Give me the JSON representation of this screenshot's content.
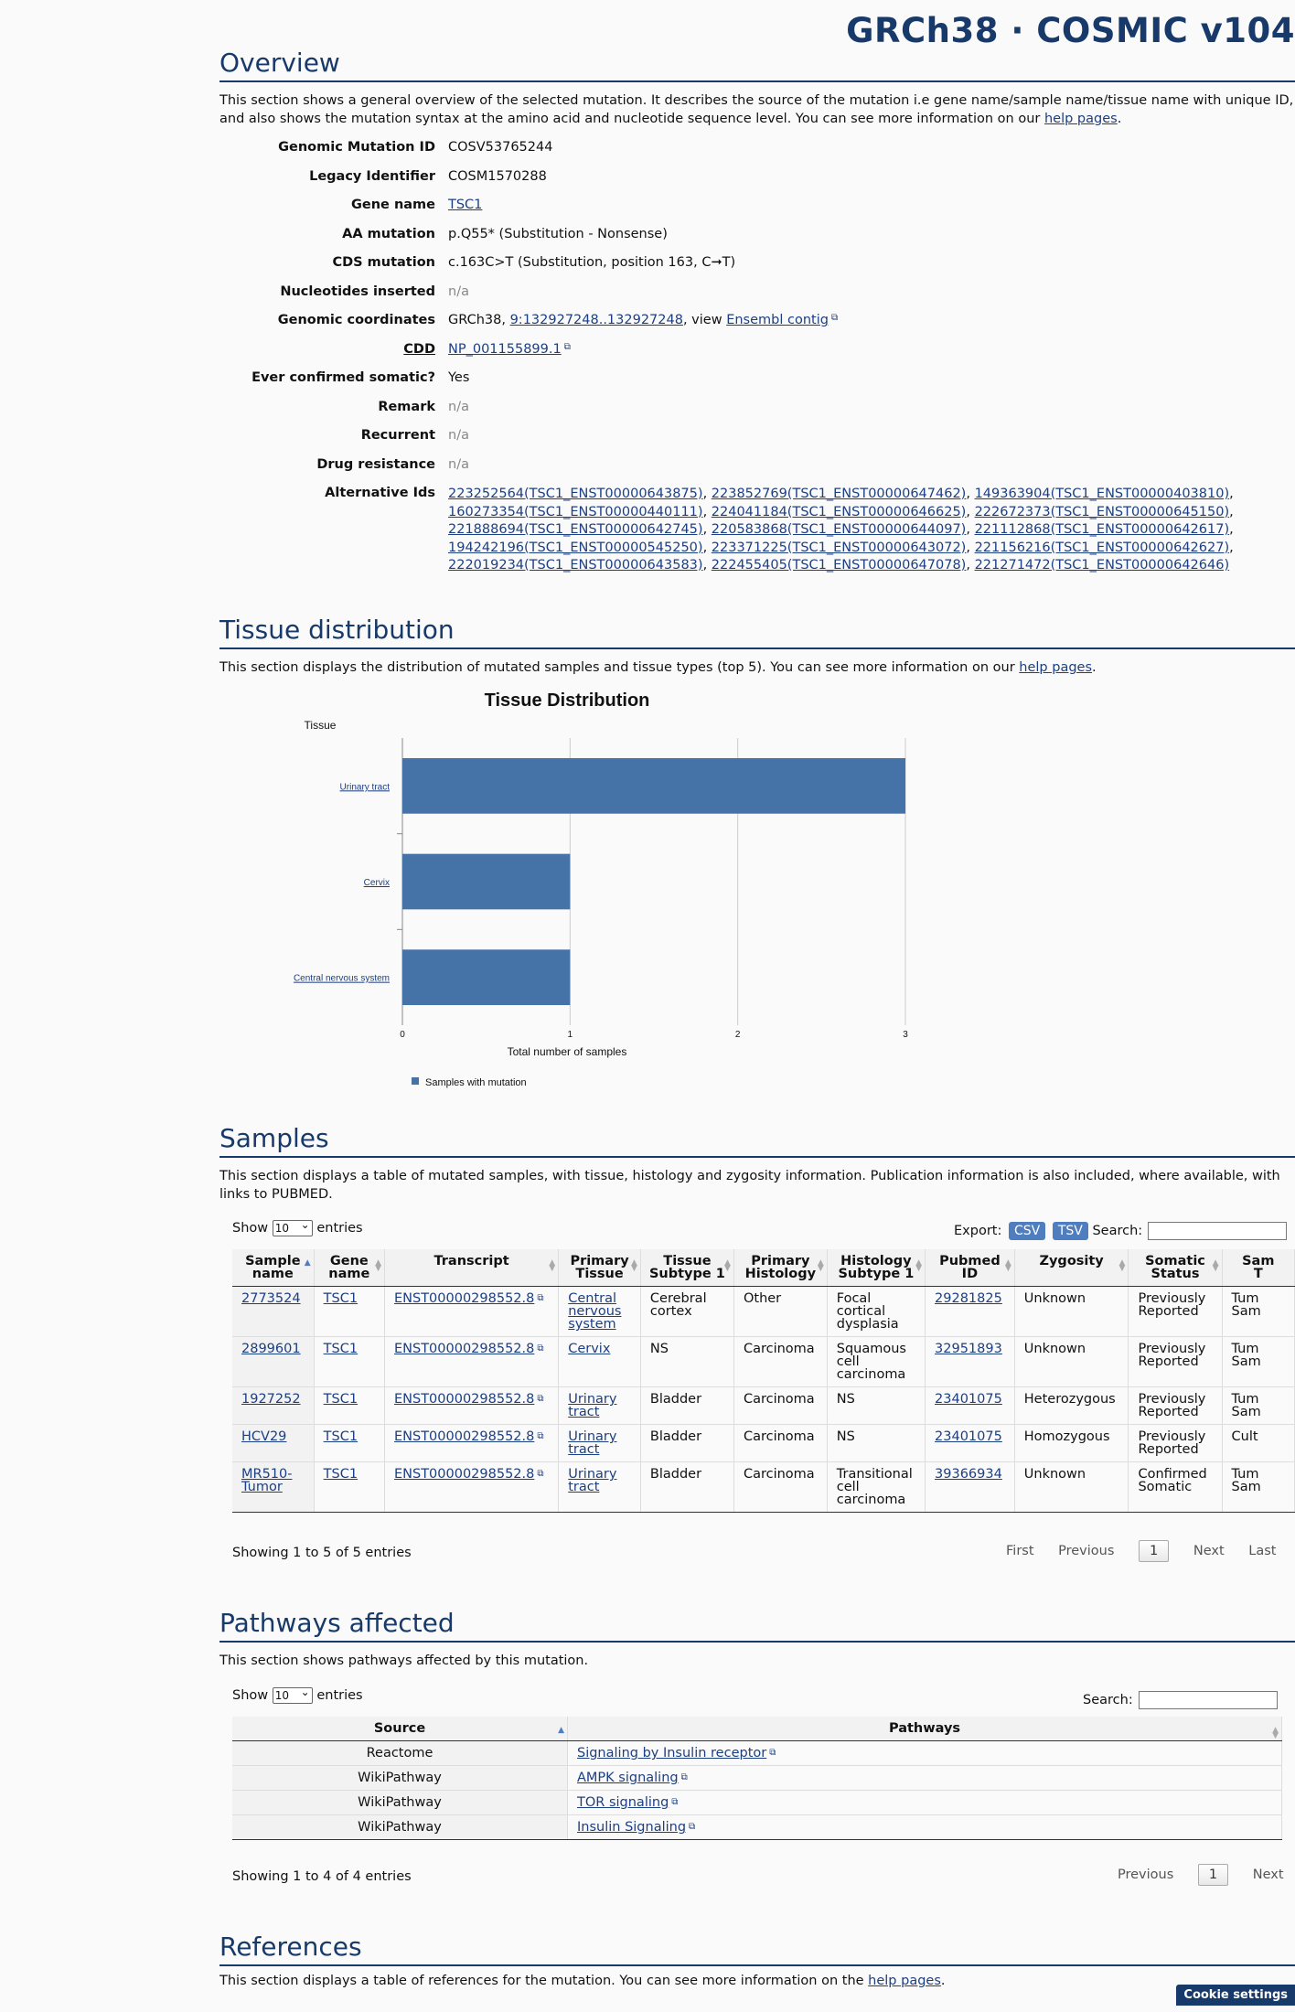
{
  "header": {
    "brand": "GRCh38 · COSMIC v104"
  },
  "overview": {
    "title": "Overview",
    "intro_text": "This section shows a general overview of the selected mutation. It describes the source of the mutation i.e gene name/sample name/tissue name with unique ID, and also shows the mutation syntax at the amino acid and nucleotide sequence level. You can see more information on our ",
    "intro_link": "help pages",
    "intro_end": ".",
    "rows": {
      "genomic_mutation_id": {
        "label": "Genomic Mutation ID",
        "value": "COSV53765244"
      },
      "legacy_identifier": {
        "label": "Legacy Identifier",
        "value": "COSM1570288"
      },
      "gene_name": {
        "label": "Gene name",
        "value": "TSC1"
      },
      "aa_mutation": {
        "label": "AA mutation",
        "value": "p.Q55* (Substitution - Nonsense)"
      },
      "cds_mutation": {
        "label": "CDS mutation",
        "value": "c.163C>T (Substitution, position 163, C➞T)"
      },
      "nucleotides_inserted": {
        "label": "Nucleotides inserted",
        "value": "n/a"
      },
      "genomic_coordinates": {
        "label": "Genomic coordinates",
        "prefix": "GRCh38, ",
        "coord": "9:132927248..132927248",
        "mid": ", view ",
        "link": "Ensembl contig"
      },
      "cdd": {
        "label": "CDD",
        "value": "NP_001155899.1"
      },
      "ever_confirmed_somatic": {
        "label": "Ever confirmed somatic?",
        "value": "Yes"
      },
      "remark": {
        "label": "Remark",
        "value": "n/a"
      },
      "recurrent": {
        "label": "Recurrent",
        "value": "n/a"
      },
      "drug_resistance": {
        "label": "Drug resistance",
        "value": "n/a"
      },
      "alternative_ids": {
        "label": "Alternative Ids",
        "ids": [
          "223252564(TSC1_ENST00000643875)",
          "223852769(TSC1_ENST00000647462)",
          "149363904(TSC1_ENST00000403810)",
          "160273354(TSC1_ENST00000440111)",
          "224041184(TSC1_ENST00000646625)",
          "222672373(TSC1_ENST00000645150)",
          "221888694(TSC1_ENST00000642745)",
          "220583868(TSC1_ENST00000644097)",
          "221112868(TSC1_ENST00000642617)",
          "194242196(TSC1_ENST00000545250)",
          "223371225(TSC1_ENST00000643072)",
          "221156216(TSC1_ENST00000642627)",
          "222019234(TSC1_ENST00000643583)",
          "222455405(TSC1_ENST00000647078)",
          "221271472(TSC1_ENST00000642646)"
        ]
      }
    }
  },
  "tissue": {
    "title": "Tissue distribution",
    "intro_text": "This section displays the distribution of mutated samples and tissue types (top 5). You can see more information on our ",
    "intro_link": "help pages",
    "intro_end": "."
  },
  "chart_data": {
    "type": "bar",
    "orientation": "horizontal",
    "title": "Tissue Distribution",
    "ylabel": "Tissue",
    "xlabel": "Total number of samples",
    "categories": [
      "Urinary tract",
      "Cervix",
      "Central nervous system"
    ],
    "series": [
      {
        "name": "Samples with mutation",
        "values": [
          3,
          1,
          1
        ],
        "color": "#4572a7"
      }
    ],
    "xlim": [
      0,
      3
    ],
    "xticks": [
      "0",
      "1",
      "2",
      "3"
    ],
    "grid": true,
    "legend": "bottom-left"
  },
  "samples": {
    "title": "Samples",
    "intro_text": "This section displays a table of mutated samples, with tissue, histology and zygosity information. Publication information is also included, where available, with links to PUBMED.",
    "show_label": "Show",
    "show_value": "10",
    "entries_label": "entries",
    "export_label": "Export:",
    "csv": "CSV",
    "tsv": "TSV",
    "search_label": "Search:",
    "columns": [
      [
        "Sample",
        "name"
      ],
      [
        "Gene",
        "name"
      ],
      [
        "Transcript",
        ""
      ],
      [
        "Primary",
        "Tissue"
      ],
      [
        "Tissue",
        "Subtype 1"
      ],
      [
        "Primary",
        "Histology"
      ],
      [
        "Histology",
        "Subtype 1"
      ],
      [
        "Pubmed",
        "ID"
      ],
      [
        "Zygosity",
        ""
      ],
      [
        "Somatic",
        "Status"
      ],
      [
        "Sam",
        "T"
      ]
    ],
    "rows": [
      {
        "sample": "2773524",
        "gene": "TSC1",
        "transcript": "ENST00000298552.8",
        "tissue": [
          "Central",
          "nervous",
          "system"
        ],
        "subtype": [
          "Cerebral",
          "cortex"
        ],
        "histology": [
          "Other"
        ],
        "hist_sub": [
          "Focal cortical",
          "dysplasia"
        ],
        "pubmed": "29281825",
        "zygosity": "Unknown",
        "status": [
          "Previously",
          "Reported"
        ],
        "sam": [
          "Tum",
          "Sam"
        ]
      },
      {
        "sample": "2899601",
        "gene": "TSC1",
        "transcript": "ENST00000298552.8",
        "tissue": [
          "Cervix"
        ],
        "subtype": [
          "NS"
        ],
        "histology": [
          "Carcinoma"
        ],
        "hist_sub": [
          "Squamous",
          "cell",
          "carcinoma"
        ],
        "pubmed": "32951893",
        "zygosity": "Unknown",
        "status": [
          "Previously",
          "Reported"
        ],
        "sam": [
          "Tum",
          "Sam"
        ]
      },
      {
        "sample": "1927252",
        "gene": "TSC1",
        "transcript": "ENST00000298552.8",
        "tissue": [
          "Urinary",
          "tract"
        ],
        "subtype": [
          "Bladder"
        ],
        "histology": [
          "Carcinoma"
        ],
        "hist_sub": [
          "NS"
        ],
        "pubmed": "23401075",
        "zygosity": "Heterozygous",
        "status": [
          "Previously",
          "Reported"
        ],
        "sam": [
          "Tum",
          "Sam"
        ]
      },
      {
        "sample": "HCV29",
        "gene": "TSC1",
        "transcript": "ENST00000298552.8",
        "tissue": [
          "Urinary",
          "tract"
        ],
        "subtype": [
          "Bladder"
        ],
        "histology": [
          "Carcinoma"
        ],
        "hist_sub": [
          "NS"
        ],
        "pubmed": "23401075",
        "zygosity": "Homozygous",
        "status": [
          "Previously",
          "Reported"
        ],
        "sam": [
          "Cult",
          ""
        ]
      },
      {
        "sample": "MR510-Tumor",
        "sample_lines": [
          "MR510-",
          "Tumor"
        ],
        "gene": "TSC1",
        "transcript": "ENST00000298552.8",
        "tissue": [
          "Urinary",
          "tract"
        ],
        "subtype": [
          "Bladder"
        ],
        "histology": [
          "Carcinoma"
        ],
        "hist_sub": [
          "Transitional",
          "cell",
          "carcinoma"
        ],
        "pubmed": "39366934",
        "zygosity": "Unknown",
        "status": [
          "Confirmed",
          "Somatic"
        ],
        "sam": [
          "Tum",
          "Sam"
        ]
      }
    ],
    "info": "Showing 1 to 5 of 5 entries",
    "pager": {
      "first": "First",
      "previous": "Previous",
      "page": "1",
      "next": "Next",
      "last": "Last"
    }
  },
  "pathways": {
    "title": "Pathways affected",
    "intro_text": "This section shows pathways affected by this mutation.",
    "show_label": "Show",
    "show_value": "10",
    "entries_label": "entries",
    "search_label": "Search:",
    "col_source": "Source",
    "col_pathways": "Pathways",
    "rows": [
      {
        "source": "Reactome",
        "pathway": "Signaling by Insulin receptor"
      },
      {
        "source": "WikiPathway",
        "pathway": "AMPK signaling"
      },
      {
        "source": "WikiPathway",
        "pathway": "TOR signaling"
      },
      {
        "source": "WikiPathway",
        "pathway": "Insulin Signaling"
      }
    ],
    "info": "Showing 1 to 4 of 4 entries",
    "pager": {
      "previous": "Previous",
      "page": "1",
      "next": "Next"
    }
  },
  "references": {
    "title": "References",
    "intro_text": "This section displays a table of references for the mutation. You can see more information on the ",
    "intro_link": "help pages",
    "intro_end": "."
  },
  "cookie": {
    "label": "Cookie settings"
  }
}
